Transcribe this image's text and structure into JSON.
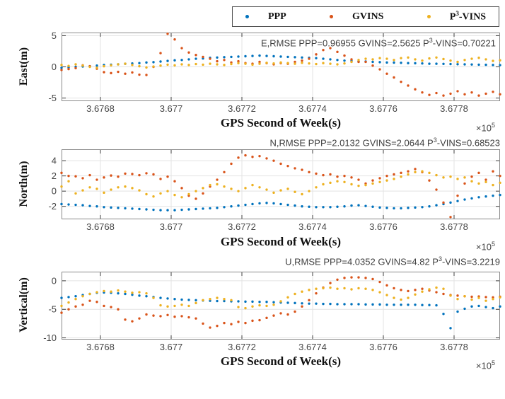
{
  "colors": {
    "ppp": "#0072BD",
    "gvins": "#D95319",
    "p3vins": "#EDB120",
    "axis_box": "#8a8a8a",
    "tick": "#3f3f3f",
    "grid": "#e3e3e3",
    "tick_label": "#454545",
    "title_text": "#3f3f3f"
  },
  "legend": {
    "items": [
      {
        "label_parts": {
          "pre": "PPP",
          "sup": "",
          "post": ""
        },
        "color": "#0072BD"
      },
      {
        "label_parts": {
          "pre": "GVINS",
          "sup": "",
          "post": ""
        },
        "color": "#D95319"
      },
      {
        "label_parts": {
          "pre": "P",
          "sup": "3",
          "post": "-VINS"
        },
        "color": "#EDB120"
      }
    ]
  },
  "shared_x": [
    367669,
    367671,
    367673,
    367675,
    367677,
    367679,
    367681,
    367683,
    367685,
    367687,
    367689,
    367691,
    367693,
    367695,
    367697,
    367699,
    367701,
    367703,
    367705,
    367707,
    367709,
    367711,
    367713,
    367715,
    367717,
    367719,
    367721,
    367723,
    367725,
    367727,
    367729,
    367731,
    367733,
    367735,
    367737,
    367739,
    367741,
    367743,
    367745,
    367747,
    367749,
    367751,
    367753,
    367755,
    367757,
    367759,
    367761,
    367763,
    367765,
    367767,
    367769,
    367771,
    367773,
    367775,
    367777,
    367779,
    367781,
    367783,
    367785,
    367787,
    367789,
    367791,
    367793
  ],
  "chart_data": [
    {
      "type": "scatter",
      "title_parts": {
        "pre": "E,RMSE PPP=0.96955 GVINS=2.5625 P",
        "sup": "3",
        "post": "-VINS=0.70221"
      },
      "ylabel": "East(m)",
      "xlabel": "GPS Second of Week(s)",
      "x_multiplier": {
        "pre": "×10",
        "sup": "5"
      },
      "xlim": [
        367669,
        367793
      ],
      "ylim": [
        -5.5,
        5.5
      ],
      "yticks": [
        -5,
        0,
        5
      ],
      "xticks": [
        367680,
        367700,
        367720,
        367740,
        367760,
        367780
      ],
      "xtick_labels": [
        "3.6768",
        "3.677",
        "3.6772",
        "3.6774",
        "3.6776",
        "3.6778"
      ],
      "series": [
        {
          "name": "PPP",
          "color": "#0072BD",
          "values": [
            -0.15,
            -0.1,
            0.0,
            0.05,
            0.1,
            0.2,
            0.3,
            0.35,
            0.4,
            0.5,
            0.55,
            0.6,
            0.7,
            0.75,
            0.85,
            0.95,
            1.05,
            1.1,
            1.2,
            1.3,
            1.35,
            1.45,
            1.5,
            1.55,
            1.6,
            1.65,
            1.7,
            1.75,
            1.8,
            1.75,
            1.7,
            1.65,
            1.6,
            1.55,
            1.5,
            1.45,
            1.4,
            1.3,
            1.2,
            1.1,
            1.0,
            0.95,
            0.9,
            0.85,
            0.8,
            0.75,
            0.7,
            0.68,
            0.65,
            0.6,
            0.58,
            0.55,
            0.5,
            0.5,
            0.48,
            0.45,
            0.42,
            0.4,
            0.38,
            0.35,
            0.33,
            0.3,
            0.28
          ]
        },
        {
          "name": "GVINS",
          "color": "#D95319",
          "values": [
            -0.5,
            -0.35,
            -0.2,
            0.25,
            0.1,
            -0.3,
            -0.85,
            -1.0,
            -0.8,
            -1.1,
            -0.9,
            -1.25,
            -1.3,
            0.0,
            2.2,
            5.3,
            4.4,
            3.0,
            2.3,
            1.9,
            1.6,
            1.3,
            0.9,
            1.1,
            0.7,
            0.9,
            0.6,
            0.5,
            0.8,
            0.6,
            0.4,
            0.6,
            0.5,
            0.8,
            1.0,
            1.3,
            2.0,
            2.7,
            3.0,
            2.4,
            1.8,
            1.2,
            0.8,
            0.8,
            0.2,
            -0.4,
            -1.1,
            -1.7,
            -2.4,
            -3.0,
            -3.6,
            -4.1,
            -4.5,
            -4.2,
            -4.6,
            -4.3,
            -3.9,
            -4.4,
            -4.1,
            -4.6,
            -4.3,
            -4.0,
            -4.4
          ]
        },
        {
          "name": "P3-VINS",
          "color": "#EDB120",
          "values": [
            0.3,
            0.15,
            0.4,
            0.2,
            0.0,
            -0.15,
            0.1,
            0.25,
            0.4,
            0.5,
            0.3,
            0.1,
            -0.1,
            0.05,
            0.2,
            0.35,
            0.25,
            0.4,
            0.3,
            0.45,
            0.35,
            0.5,
            0.4,
            0.3,
            0.45,
            0.6,
            0.5,
            0.35,
            0.5,
            0.65,
            0.55,
            0.7,
            0.6,
            0.5,
            0.65,
            0.55,
            0.45,
            0.6,
            0.5,
            0.4,
            0.55,
            0.8,
            1.1,
            1.3,
            1.2,
            1.4,
            1.3,
            1.1,
            1.4,
            1.5,
            1.2,
            1.0,
            1.35,
            1.5,
            1.25,
            1.0,
            0.8,
            1.1,
            1.3,
            1.45,
            1.2,
            0.95,
            1.05
          ]
        }
      ]
    },
    {
      "type": "scatter",
      "title_parts": {
        "pre": "N,RMSE PPP=2.0132 GVINS=2.0644 P",
        "sup": "3",
        "post": "-VINS=0.68523"
      },
      "ylabel": "North(m)",
      "xlabel": "GPS Second of Week(s)",
      "x_multiplier": {
        "pre": "×10",
        "sup": "5"
      },
      "xlim": [
        367669,
        367793
      ],
      "ylim": [
        -3.7,
        5.5
      ],
      "yticks": [
        -2,
        0,
        2,
        4
      ],
      "xticks": [
        367680,
        367700,
        367720,
        367740,
        367760,
        367780
      ],
      "xtick_labels": [
        "3.6768",
        "3.677",
        "3.6772",
        "3.6774",
        "3.6776",
        "3.6778"
      ],
      "series": [
        {
          "name": "PPP",
          "color": "#0072BD",
          "values": [
            -1.7,
            -1.75,
            -1.8,
            -1.85,
            -1.95,
            -2.0,
            -2.1,
            -2.15,
            -2.2,
            -2.25,
            -2.3,
            -2.35,
            -2.4,
            -2.45,
            -2.5,
            -2.5,
            -2.5,
            -2.45,
            -2.4,
            -2.35,
            -2.3,
            -2.25,
            -2.2,
            -2.1,
            -2.0,
            -1.9,
            -1.8,
            -1.7,
            -1.6,
            -1.55,
            -1.6,
            -1.7,
            -1.8,
            -1.9,
            -2.0,
            -2.05,
            -2.1,
            -2.1,
            -2.1,
            -2.05,
            -2.0,
            -1.9,
            -1.85,
            -1.95,
            -2.05,
            -2.15,
            -2.2,
            -2.25,
            -2.25,
            -2.2,
            -2.15,
            -2.1,
            -2.0,
            -1.85,
            -1.7,
            -1.5,
            -1.3,
            -1.1,
            -0.95,
            -0.8,
            -0.7,
            -0.6,
            -0.5
          ]
        },
        {
          "name": "GVINS",
          "color": "#D95319",
          "values": [
            2.4,
            2.0,
            1.95,
            1.7,
            2.1,
            1.5,
            1.8,
            2.05,
            1.9,
            2.3,
            2.25,
            2.1,
            2.35,
            2.2,
            1.6,
            1.9,
            1.3,
            0.4,
            -0.6,
            -1.0,
            -0.3,
            0.6,
            1.5,
            2.5,
            3.6,
            4.4,
            4.7,
            4.5,
            4.6,
            4.3,
            4.0,
            3.6,
            3.3,
            3.0,
            2.8,
            2.5,
            2.3,
            2.1,
            2.2,
            1.9,
            2.0,
            1.8,
            1.5,
            1.0,
            1.4,
            1.7,
            2.0,
            2.2,
            2.4,
            2.6,
            2.9,
            2.5,
            1.4,
            0.2,
            -1.5,
            -3.4,
            -0.6,
            1.0,
            1.9,
            2.4,
            1.5,
            2.6,
            2.0
          ]
        },
        {
          "name": "P3-VINS",
          "color": "#EDB120",
          "values": [
            0.6,
            1.3,
            -0.3,
            0.1,
            0.5,
            0.3,
            -0.2,
            0.2,
            0.5,
            0.6,
            0.4,
            0.1,
            -0.4,
            -0.7,
            -0.3,
            0.0,
            -0.5,
            -0.8,
            -0.4,
            0.0,
            0.4,
            0.8,
            0.9,
            0.6,
            0.3,
            0.0,
            0.4,
            0.8,
            0.5,
            0.2,
            -0.2,
            0.1,
            0.3,
            -0.1,
            -0.4,
            0.0,
            0.5,
            0.9,
            1.1,
            1.3,
            1.2,
            0.9,
            0.7,
            0.8,
            1.0,
            1.2,
            1.4,
            1.6,
            1.9,
            2.2,
            2.5,
            2.6,
            2.4,
            2.1,
            1.8,
            1.9,
            1.6,
            1.8,
            1.3,
            1.0,
            1.2,
            0.8,
            1.1
          ]
        }
      ]
    },
    {
      "type": "scatter",
      "title_parts": {
        "pre": "U,RMSE PPP=4.0352 GVINS=4.82 P",
        "sup": "3",
        "post": "-VINS=3.2219"
      },
      "ylabel": "Vertical(m)",
      "xlabel": "GPS Second of Week(s)",
      "x_multiplier": {
        "pre": "×10",
        "sup": "5"
      },
      "xlim": [
        367669,
        367793
      ],
      "ylim": [
        -10.3,
        1.6
      ],
      "yticks": [
        -10,
        -5,
        0
      ],
      "xticks": [
        367680,
        367700,
        367720,
        367740,
        367760,
        367780
      ],
      "xtick_labels": [
        "3.6768",
        "3.677",
        "3.6772",
        "3.6774",
        "3.6776",
        "3.6778"
      ],
      "series": [
        {
          "name": "PPP",
          "color": "#0072BD",
          "values": [
            -3.0,
            -2.85,
            -2.7,
            -2.5,
            -2.3,
            -2.1,
            -2.05,
            -2.1,
            -2.2,
            -2.3,
            -2.45,
            -2.6,
            -2.7,
            -2.85,
            -3.0,
            -3.1,
            -3.2,
            -3.3,
            -3.35,
            -3.4,
            -3.45,
            -3.5,
            -3.55,
            -3.55,
            -3.6,
            -3.6,
            -3.65,
            -3.65,
            -3.7,
            -3.7,
            -3.75,
            -3.8,
            -3.85,
            -3.9,
            -3.95,
            -4.0,
            -4.0,
            -4.05,
            -4.05,
            -4.1,
            -4.1,
            -4.1,
            -4.1,
            -4.15,
            -4.15,
            -4.15,
            -4.2,
            -4.2,
            -4.2,
            -4.2,
            -4.2,
            -4.25,
            -4.25,
            -4.3,
            -5.8,
            -8.3,
            -5.4,
            -4.9,
            -4.5,
            -4.4,
            -4.6,
            -4.8,
            -4.5
          ]
        },
        {
          "name": "GVINS",
          "color": "#D95319",
          "values": [
            -5.6,
            -5.0,
            -4.5,
            -4.2,
            -3.5,
            -3.7,
            -4.4,
            -4.6,
            -5.0,
            -6.8,
            -7.1,
            -6.6,
            -5.9,
            -6.1,
            -6.2,
            -6.0,
            -6.3,
            -6.2,
            -6.4,
            -6.6,
            -7.5,
            -8.2,
            -7.9,
            -7.4,
            -7.6,
            -7.2,
            -7.4,
            -7.0,
            -6.9,
            -6.5,
            -6.1,
            -5.7,
            -5.9,
            -5.4,
            -4.5,
            -3.4,
            -2.2,
            -1.2,
            -0.4,
            0.2,
            0.5,
            0.6,
            0.6,
            0.5,
            0.3,
            -0.2,
            -0.8,
            -1.3,
            -1.6,
            -1.8,
            -1.6,
            -1.4,
            -1.7,
            -2.0,
            -2.3,
            -2.5,
            -2.6,
            -2.7,
            -2.8,
            -2.75,
            -2.85,
            -2.9,
            -2.8
          ]
        },
        {
          "name": "P3-VINS",
          "color": "#EDB120",
          "values": [
            -4.4,
            -3.8,
            -3.2,
            -2.7,
            -2.3,
            -2.0,
            -1.8,
            -1.9,
            -1.7,
            -1.9,
            -2.1,
            -2.0,
            -2.2,
            -3.0,
            -4.3,
            -4.5,
            -4.4,
            -4.2,
            -4.4,
            -3.9,
            -3.4,
            -3.2,
            -3.0,
            -3.2,
            -3.4,
            -4.6,
            -4.8,
            -4.5,
            -4.3,
            -4.4,
            -4.2,
            -3.6,
            -2.9,
            -2.3,
            -1.9,
            -1.6,
            -1.4,
            -1.3,
            -1.2,
            -1.4,
            -1.3,
            -1.5,
            -1.3,
            -1.4,
            -1.6,
            -2.0,
            -2.5,
            -3.0,
            -3.3,
            -3.0,
            -2.4,
            -1.9,
            -1.5,
            -1.2,
            -1.4,
            -2.6,
            -3.2,
            -2.7,
            -3.3,
            -3.0,
            -3.5,
            -3.2,
            -2.9
          ]
        }
      ]
    }
  ]
}
